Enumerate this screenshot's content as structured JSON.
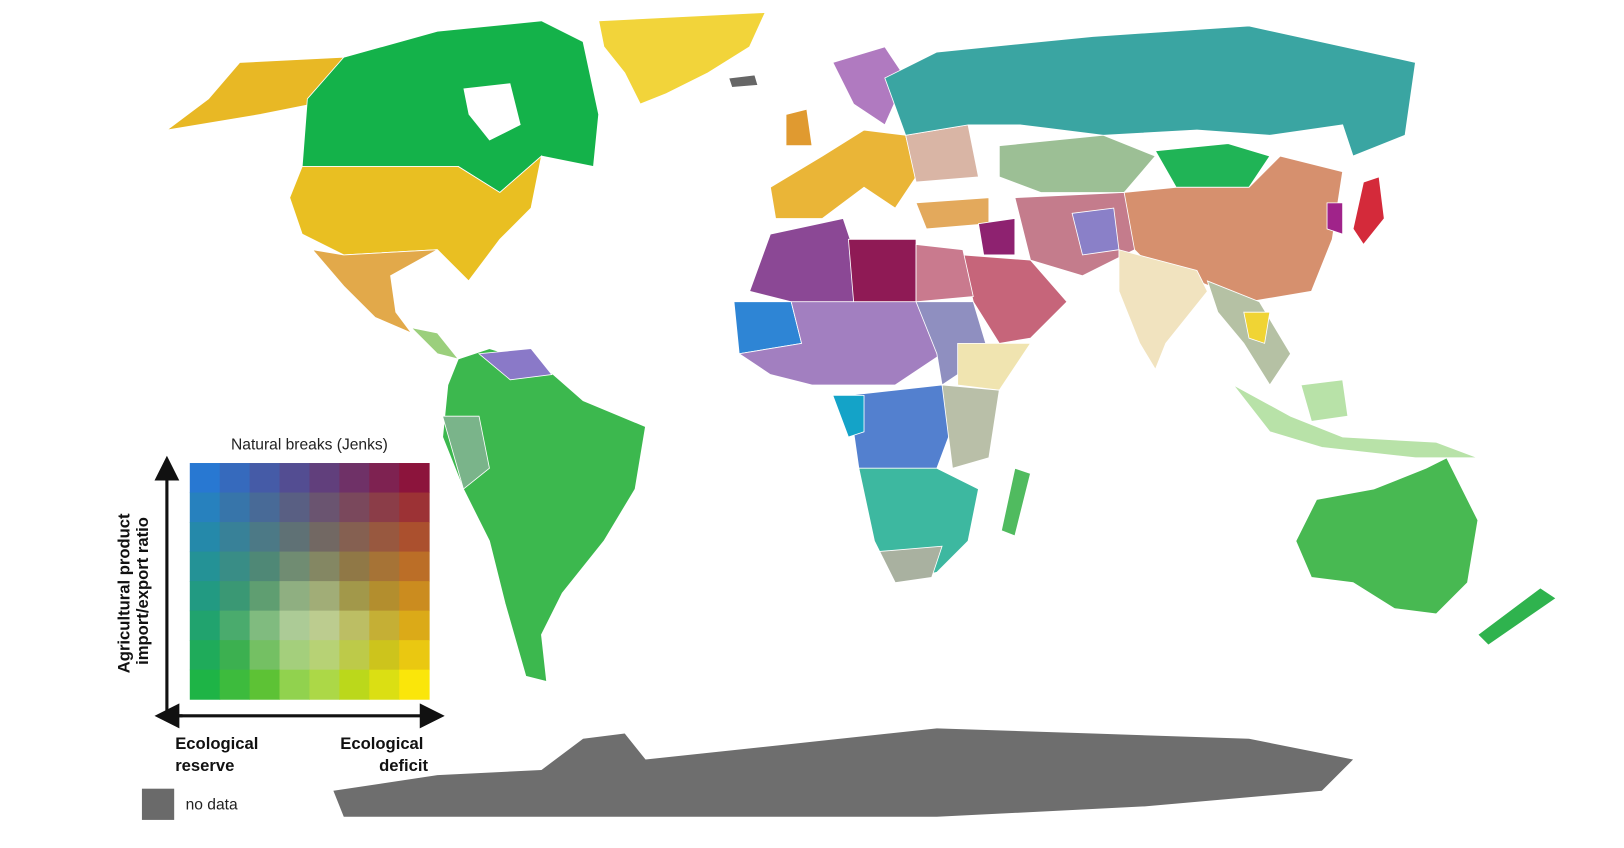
{
  "legend": {
    "title": "Natural breaks (Jenks)",
    "y_axis_label": [
      "Agricultural product",
      "import/export ratio"
    ],
    "x_low_label": [
      "Ecological",
      "reserve"
    ],
    "x_high_label": [
      "Ecological",
      "deficit"
    ],
    "no_data": "no data"
  }
}
